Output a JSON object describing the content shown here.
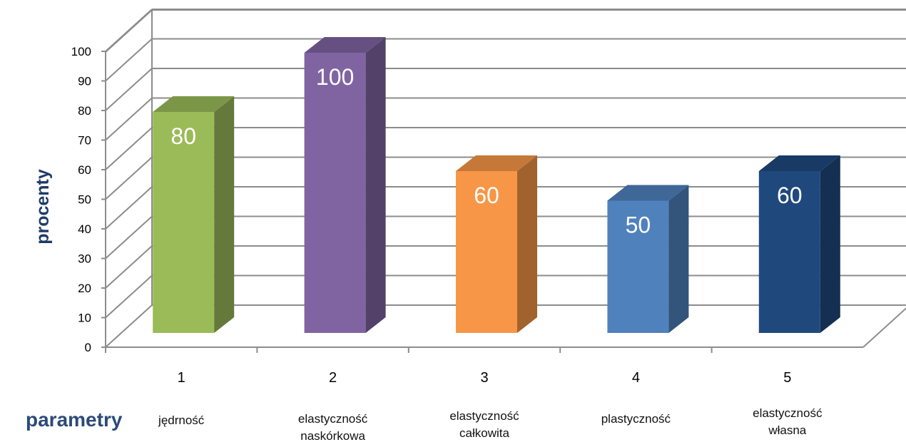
{
  "chart_data": {
    "type": "bar",
    "categories": [
      "1",
      "2",
      "3",
      "4",
      "5"
    ],
    "category_names": [
      "jędrność",
      "elastyczność\nnaskórkowa",
      "elastyczność\ncałkowita",
      "plastyczność",
      "elastyczność\nwłasna"
    ],
    "values": [
      80,
      100,
      60,
      50,
      60
    ],
    "data_labels": [
      "80",
      "100",
      "60",
      "50",
      "60"
    ],
    "colors": [
      "#9BBB59",
      "#8064A2",
      "#F79646",
      "#4F81BD",
      "#1F497D"
    ],
    "ylabel": "procenty",
    "xlabel": "parametry",
    "ylim": [
      0,
      100
    ],
    "yticks": [
      0,
      10,
      20,
      30,
      40,
      50,
      60,
      70,
      80,
      90,
      100
    ],
    "style": "3d",
    "grid": true
  }
}
